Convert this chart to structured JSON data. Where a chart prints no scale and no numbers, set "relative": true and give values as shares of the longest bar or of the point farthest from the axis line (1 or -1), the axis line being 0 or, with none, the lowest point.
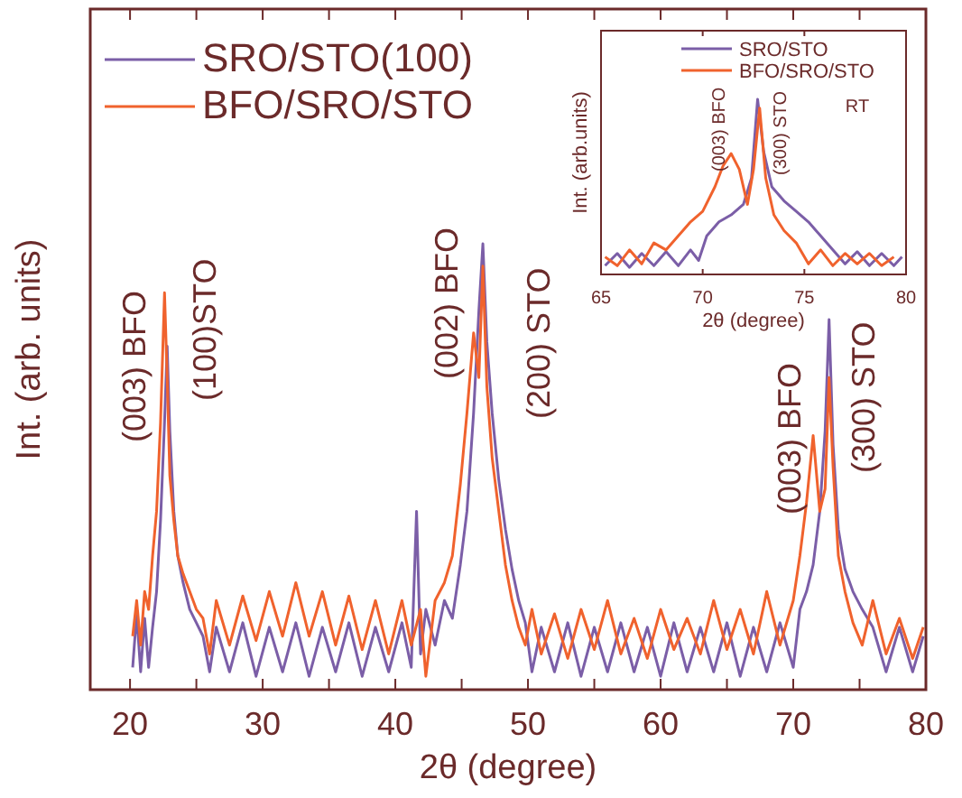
{
  "chart_data": [
    {
      "type": "line",
      "relative": true,
      "xlabel": "2θ (degree)",
      "ylabel": "Int. (arb. units)",
      "xlim": [
        17,
        80
      ],
      "xticks": [
        20,
        {
          "value": 25,
          "label": null
        },
        30,
        {
          "value": 35,
          "label": null
        },
        40,
        {
          "value": 45,
          "label": null
        },
        50,
        {
          "value": 55,
          "label": null
        },
        60,
        {
          "value": 65,
          "label": null
        },
        70,
        {
          "value": 75,
          "label": null
        },
        80
      ],
      "legend": "top left",
      "annotations": [
        "(003) BFO",
        "(100)STO",
        "(002) BFO",
        "(200) STO",
        "(003) BFO",
        "(300) STO"
      ],
      "series": [
        {
          "name": "SRO/STO(100)",
          "color": "#7b5ea7",
          "x": [
            20.2,
            20.5,
            20.8,
            21.1,
            21.4,
            21.7,
            22.0,
            22.3,
            22.6,
            22.8,
            23.0,
            23.3,
            23.6,
            24.0,
            24.5,
            25.0,
            25.5,
            26.0,
            26.5,
            27.5,
            28.5,
            29.5,
            30.5,
            31.5,
            32.5,
            33.5,
            34.5,
            35.5,
            36.5,
            37.5,
            38.5,
            39.5,
            40.5,
            41.2,
            41.6,
            41.9,
            42.3,
            43.0,
            43.7,
            44.3,
            44.9,
            45.4,
            45.9,
            46.3,
            46.6,
            46.9,
            47.3,
            47.8,
            48.3,
            48.8,
            49.3,
            49.8,
            50.3,
            51,
            52,
            53,
            54,
            55,
            56,
            57,
            58,
            59,
            60,
            61,
            62,
            63,
            64,
            65,
            66,
            67,
            68,
            69,
            70,
            70.5,
            71,
            71.5,
            72,
            72.4,
            72.7,
            73.0,
            73.4,
            73.9,
            74.5,
            75.2,
            76,
            77,
            78,
            79,
            79.8
          ],
          "values": [
            0.05,
            0.17,
            0.04,
            0.16,
            0.05,
            0.14,
            0.22,
            0.38,
            0.6,
            0.77,
            0.58,
            0.4,
            0.3,
            0.24,
            0.18,
            0.15,
            0.12,
            0.04,
            0.14,
            0.04,
            0.15,
            0.03,
            0.14,
            0.04,
            0.15,
            0.03,
            0.14,
            0.04,
            0.15,
            0.03,
            0.14,
            0.04,
            0.15,
            0.05,
            0.4,
            0.08,
            0.18,
            0.1,
            0.2,
            0.16,
            0.28,
            0.4,
            0.62,
            0.85,
            1.0,
            0.78,
            0.62,
            0.47,
            0.36,
            0.27,
            0.2,
            0.15,
            0.04,
            0.14,
            0.04,
            0.15,
            0.03,
            0.14,
            0.04,
            0.15,
            0.04,
            0.14,
            0.03,
            0.15,
            0.04,
            0.14,
            0.04,
            0.15,
            0.03,
            0.14,
            0.04,
            0.15,
            0.05,
            0.18,
            0.22,
            0.28,
            0.4,
            0.58,
            0.83,
            0.55,
            0.36,
            0.27,
            0.22,
            0.18,
            0.14,
            0.04,
            0.14,
            0.04,
            0.12
          ]
        },
        {
          "name": "BFO/SRO/STO",
          "color": "#f0622d",
          "x": [
            20.2,
            20.5,
            20.8,
            21.1,
            21.4,
            21.7,
            22.0,
            22.3,
            22.6,
            22.8,
            23.0,
            23.3,
            23.6,
            24.0,
            24.5,
            25.0,
            25.5,
            26.0,
            26.5,
            27.5,
            28.5,
            29.5,
            30.5,
            31.5,
            32.5,
            33.5,
            34.5,
            35.5,
            36.5,
            37.5,
            38.5,
            39.5,
            40.5,
            41.2,
            41.9,
            42.3,
            43.0,
            43.7,
            44.3,
            44.9,
            45.4,
            45.9,
            46.3,
            46.6,
            46.9,
            47.3,
            47.8,
            48.3,
            48.8,
            49.3,
            49.8,
            50.3,
            51,
            52,
            53,
            54,
            55,
            56,
            57,
            58,
            59,
            60,
            61,
            62,
            63,
            64,
            65,
            66,
            67,
            68,
            69,
            70,
            70.5,
            71,
            71.5,
            72,
            72.4,
            72.7,
            73.0,
            73.4,
            73.9,
            74.5,
            75.2,
            76,
            77,
            78,
            79,
            79.8
          ],
          "values": [
            0.12,
            0.2,
            0.1,
            0.22,
            0.18,
            0.3,
            0.4,
            0.6,
            0.89,
            0.7,
            0.48,
            0.38,
            0.3,
            0.26,
            0.22,
            0.18,
            0.16,
            0.08,
            0.2,
            0.1,
            0.21,
            0.11,
            0.22,
            0.12,
            0.24,
            0.12,
            0.22,
            0.1,
            0.21,
            0.09,
            0.2,
            0.08,
            0.2,
            0.1,
            0.18,
            0.03,
            0.2,
            0.24,
            0.3,
            0.46,
            0.62,
            0.8,
            0.7,
            0.95,
            0.68,
            0.52,
            0.4,
            0.28,
            0.2,
            0.14,
            0.1,
            0.18,
            0.08,
            0.17,
            0.07,
            0.18,
            0.09,
            0.2,
            0.08,
            0.16,
            0.07,
            0.18,
            0.09,
            0.16,
            0.08,
            0.2,
            0.09,
            0.18,
            0.08,
            0.22,
            0.1,
            0.2,
            0.3,
            0.42,
            0.57,
            0.4,
            0.45,
            0.7,
            0.5,
            0.3,
            0.22,
            0.15,
            0.1,
            0.2,
            0.08,
            0.16,
            0.07,
            0.14
          ]
        }
      ]
    },
    {
      "type": "line",
      "relative": true,
      "xlabel": "2θ (degree)",
      "ylabel": "Int. (arb.units)",
      "xlim": [
        65,
        80
      ],
      "xticks": [
        65,
        70,
        75,
        80
      ],
      "legend": "top",
      "annotations": [
        "(003) BFO",
        "(300) STO",
        "RT"
      ],
      "series": [
        {
          "name": "SRO/STO",
          "color": "#7b5ea7",
          "x": [
            65.2,
            65.8,
            66.4,
            67,
            67.6,
            68.2,
            68.8,
            69.4,
            69.8,
            70.2,
            70.8,
            71.4,
            72,
            72.4,
            72.7,
            73,
            73.4,
            74,
            74.6,
            75.2,
            75.8,
            76.4,
            77,
            77.6,
            78.2,
            78.8,
            79.4,
            79.8
          ],
          "values": [
            0.05,
            0.12,
            0.04,
            0.12,
            0.05,
            0.13,
            0.05,
            0.14,
            0.08,
            0.22,
            0.3,
            0.34,
            0.4,
            0.55,
            1.0,
            0.7,
            0.5,
            0.42,
            0.36,
            0.3,
            0.22,
            0.14,
            0.06,
            0.13,
            0.05,
            0.12,
            0.05,
            0.1
          ]
        },
        {
          "name": "BFO/SRO/STO",
          "color": "#f0622d",
          "x": [
            65.2,
            65.8,
            66.4,
            67,
            67.6,
            68.2,
            68.8,
            69.4,
            70,
            70.6,
            71,
            71.4,
            71.8,
            72.2,
            72.5,
            72.8,
            73.1,
            73.5,
            74,
            74.6,
            75.2,
            75.8,
            76.4,
            77,
            77.6,
            78.2,
            78.8,
            79.4
          ],
          "values": [
            0.1,
            0.05,
            0.14,
            0.06,
            0.18,
            0.14,
            0.22,
            0.3,
            0.36,
            0.5,
            0.62,
            0.69,
            0.6,
            0.4,
            0.6,
            0.95,
            0.55,
            0.34,
            0.25,
            0.18,
            0.06,
            0.14,
            0.05,
            0.12,
            0.06,
            0.12,
            0.05,
            0.1
          ]
        }
      ]
    }
  ]
}
